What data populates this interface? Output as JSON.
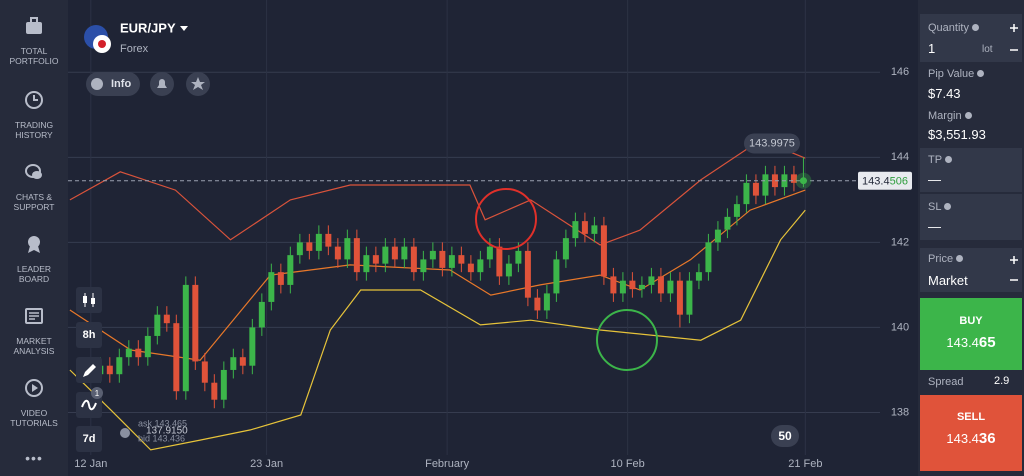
{
  "sidebar": {
    "items": [
      "TOTAL PORTFOLIO",
      "TRADING HISTORY",
      "CHATS & SUPPORT",
      "LEADER BOARD",
      "MARKET ANALYSIS",
      "VIDEO TUTORIALS"
    ],
    "more": "•••"
  },
  "instrument": {
    "symbol": "EUR/JPY",
    "market": "Forex",
    "info": "Info"
  },
  "toolbar": {
    "period": "8h",
    "range": "7d",
    "badge": "1"
  },
  "quote": {
    "ask": "ask 143.465",
    "low": "137.9150",
    "bid": "bid 143.436"
  },
  "indicator_badge": 50,
  "chart_data": {
    "type": "candlestick",
    "candles": [
      [
        138.9,
        139.3,
        138.7,
        139.1
      ],
      [
        139.1,
        139.3,
        138.7,
        138.9
      ],
      [
        138.9,
        139.5,
        138.7,
        139.3
      ],
      [
        139.3,
        139.7,
        139.1,
        139.5
      ],
      [
        139.5,
        139.7,
        139.1,
        139.3
      ],
      [
        139.3,
        140.0,
        139.1,
        139.8
      ],
      [
        139.8,
        140.5,
        139.6,
        140.3
      ],
      [
        140.3,
        140.5,
        139.9,
        140.1
      ],
      [
        140.1,
        140.3,
        138.3,
        138.5
      ],
      [
        138.5,
        141.2,
        138.3,
        141.0
      ],
      [
        141.0,
        141.2,
        139.0,
        139.2
      ],
      [
        139.2,
        139.4,
        138.5,
        138.7
      ],
      [
        138.7,
        138.9,
        138.1,
        138.3
      ],
      [
        138.3,
        139.2,
        138.1,
        139.0
      ],
      [
        139.0,
        139.5,
        138.8,
        139.3
      ],
      [
        139.3,
        139.5,
        138.9,
        139.1
      ],
      [
        139.1,
        140.2,
        138.9,
        140.0
      ],
      [
        140.0,
        140.8,
        139.8,
        140.6
      ],
      [
        140.6,
        141.5,
        140.4,
        141.3
      ],
      [
        141.3,
        141.5,
        140.8,
        141.0
      ],
      [
        141.0,
        141.9,
        140.8,
        141.7
      ],
      [
        141.7,
        142.2,
        141.5,
        142.0
      ],
      [
        142.0,
        142.2,
        141.6,
        141.8
      ],
      [
        141.8,
        142.4,
        141.6,
        142.2
      ],
      [
        142.2,
        142.4,
        141.7,
        141.9
      ],
      [
        141.9,
        142.1,
        141.4,
        141.6
      ],
      [
        141.6,
        142.3,
        141.4,
        142.1
      ],
      [
        142.1,
        142.3,
        141.1,
        141.3
      ],
      [
        141.3,
        141.9,
        141.1,
        141.7
      ],
      [
        141.7,
        141.9,
        141.3,
        141.5
      ],
      [
        141.5,
        142.1,
        141.3,
        141.9
      ],
      [
        141.9,
        142.1,
        141.4,
        141.6
      ],
      [
        141.6,
        142.1,
        141.4,
        141.9
      ],
      [
        141.9,
        142.1,
        141.1,
        141.3
      ],
      [
        141.3,
        141.8,
        141.1,
        141.6
      ],
      [
        141.6,
        142.0,
        141.4,
        141.8
      ],
      [
        141.8,
        142.0,
        141.2,
        141.4
      ],
      [
        141.4,
        141.9,
        141.2,
        141.7
      ],
      [
        141.7,
        141.9,
        141.3,
        141.5
      ],
      [
        141.5,
        141.7,
        141.1,
        141.3
      ],
      [
        141.3,
        141.8,
        141.1,
        141.6
      ],
      [
        141.6,
        142.1,
        141.4,
        141.9
      ],
      [
        141.9,
        142.1,
        141.0,
        141.2
      ],
      [
        141.2,
        141.7,
        141.0,
        141.5
      ],
      [
        141.5,
        142.0,
        141.3,
        141.8
      ],
      [
        141.8,
        142.0,
        140.5,
        140.7
      ],
      [
        140.7,
        140.9,
        140.2,
        140.4
      ],
      [
        140.4,
        141.0,
        140.2,
        140.8
      ],
      [
        140.8,
        141.8,
        140.6,
        141.6
      ],
      [
        141.6,
        142.3,
        141.4,
        142.1
      ],
      [
        142.1,
        142.7,
        141.9,
        142.5
      ],
      [
        142.5,
        142.7,
        142.0,
        142.2
      ],
      [
        142.2,
        142.6,
        142.0,
        142.4
      ],
      [
        142.4,
        142.6,
        141.0,
        141.2
      ],
      [
        141.2,
        141.4,
        140.6,
        140.8
      ],
      [
        140.8,
        141.3,
        140.6,
        141.1
      ],
      [
        141.1,
        141.3,
        140.7,
        140.9
      ],
      [
        140.9,
        141.2,
        140.7,
        141.0
      ],
      [
        141.0,
        141.4,
        140.8,
        141.2
      ],
      [
        141.2,
        141.4,
        140.6,
        140.8
      ],
      [
        140.8,
        141.3,
        140.6,
        141.1
      ],
      [
        141.1,
        141.3,
        140.0,
        140.3
      ],
      [
        140.3,
        141.3,
        140.1,
        141.1
      ],
      [
        141.1,
        141.5,
        140.9,
        141.3
      ],
      [
        141.3,
        142.2,
        141.1,
        142.0
      ],
      [
        142.0,
        142.5,
        141.8,
        142.3
      ],
      [
        142.3,
        142.8,
        142.1,
        142.6
      ],
      [
        142.6,
        143.1,
        142.4,
        142.9
      ],
      [
        142.9,
        143.6,
        142.7,
        143.4
      ],
      [
        143.4,
        143.6,
        142.9,
        143.1
      ],
      [
        143.1,
        143.8,
        142.9,
        143.6
      ],
      [
        143.6,
        143.8,
        143.1,
        143.3
      ],
      [
        143.3,
        143.8,
        143.1,
        143.6
      ],
      [
        143.6,
        143.8,
        143.2,
        143.4
      ],
      [
        143.4,
        144.0,
        143.3,
        143.45
      ]
    ],
    "up_color": "#3cb54a",
    "down_color": "#e0533a",
    "bands": [
      {
        "color": "#d9533b",
        "x": [
          -3.2,
          2.1,
          7.9,
          13.7,
          20,
          26.3,
          38.9,
          40.5,
          45.3,
          52.6,
          56.8,
          63.2,
          69.5,
          74.2
        ],
        "values": [
          143.0,
          143.66,
          143.23,
          142.06,
          143.0,
          143.35,
          143.35,
          142.53,
          143.0,
          141.94,
          142.29,
          143.47,
          144.41,
          143.98
        ]
      },
      {
        "color": "#e8782a",
        "x": [
          -3.2,
          3.2,
          10.5,
          17.9,
          26.3,
          36.8,
          41.1,
          46.3,
          52.6,
          56.8,
          62.1,
          68.4,
          74.2
        ],
        "values": [
          140.41,
          139.47,
          139.23,
          141.23,
          141.47,
          141.35,
          140.76,
          141.0,
          141.23,
          140.88,
          141.59,
          142.76,
          143.23
        ]
      },
      {
        "color": "#e6c33a",
        "x": [
          -3.2,
          1.1,
          5.3,
          10.5,
          15.8,
          21.1,
          24.2,
          27.4,
          33.7,
          40,
          45.3,
          52.6,
          63.2,
          67.4,
          71.6,
          74.2
        ],
        "values": [
          139.0,
          138.06,
          137.12,
          137.35,
          137.59,
          137.94,
          139.94,
          140.88,
          140.88,
          140.06,
          140.17,
          139.94,
          139.7,
          140.17,
          142.06,
          142.76
        ]
      }
    ],
    "xlim": [
      -3.4,
      78.9
    ],
    "ylim": [
      137,
      147.7
    ],
    "xticks": [
      {
        "value": -1,
        "label": "12 Jan"
      },
      {
        "value": 17.5,
        "label": "23 Jan"
      },
      {
        "value": 36.5,
        "label": "February"
      },
      {
        "value": 55.5,
        "label": "10 Feb"
      },
      {
        "value": 74.2,
        "label": "21 Feb"
      }
    ],
    "yticks": [
      138,
      140,
      142,
      144,
      146
    ],
    "grid": true,
    "current_price": 143.4506,
    "period_high": 143.9975
  },
  "trade_panel": {
    "quantity": {
      "label": "Quantity",
      "value": 1,
      "unit": "lot"
    },
    "pip_value": {
      "label": "Pip Value",
      "value": "$7.43"
    },
    "margin": {
      "label": "Margin",
      "value": "$3,551.93"
    },
    "tp": {
      "label": "TP",
      "value": "—"
    },
    "sl": {
      "label": "SL",
      "value": "—"
    },
    "price": {
      "label": "Price",
      "value": "Market"
    },
    "buy": {
      "label": "BUY",
      "price": 143.465
    },
    "spread": {
      "label": "Spread",
      "value": 2.9
    },
    "sell": {
      "label": "SELL",
      "price": 143.436
    }
  }
}
